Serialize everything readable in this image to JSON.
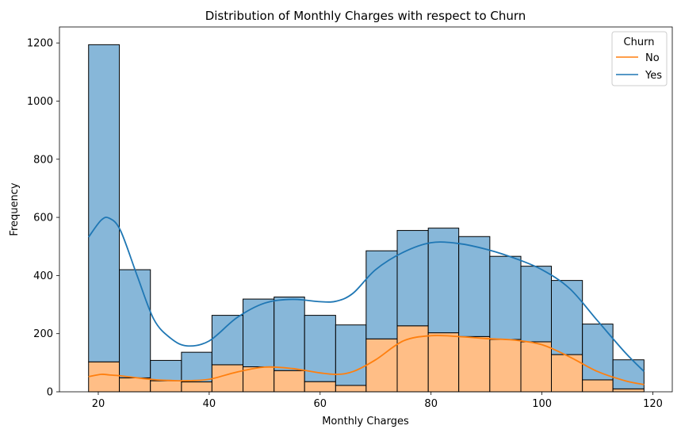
{
  "chart_data": {
    "type": "bar",
    "stacked": true,
    "title": "Distribution of Monthly Charges with respect to Churn",
    "xlabel": "Monthly Charges",
    "ylabel": "Frequency",
    "xlim": [
      13,
      123.5
    ],
    "ylim": [
      0,
      1255
    ],
    "xticks": [
      20,
      40,
      60,
      80,
      100,
      120
    ],
    "yticks": [
      0,
      200,
      400,
      600,
      800,
      1000,
      1200
    ],
    "bin_edges": [
      18.25,
      23.8,
      29.4,
      35.0,
      40.5,
      46.1,
      51.7,
      57.2,
      62.8,
      68.3,
      73.9,
      79.5,
      85.0,
      90.6,
      96.2,
      101.7,
      107.3,
      112.8,
      118.4
    ],
    "series": [
      {
        "name": "No",
        "color": "#ffbe86",
        "line_color": "#ff7f0e",
        "values": [
          103,
          48,
          38,
          34,
          93,
          86,
          73,
          35,
          22,
          182,
          227,
          203,
          190,
          180,
          172,
          128,
          41,
          10
        ]
      },
      {
        "name": "Yes",
        "color": "#87b7d9",
        "line_color": "#1f77b4",
        "values": [
          1091,
          372,
          70,
          102,
          170,
          233,
          253,
          228,
          208,
          303,
          328,
          360,
          344,
          286,
          260,
          255,
          192,
          100
        ]
      }
    ],
    "kde": {
      "x": [
        18.25,
        20.5,
        22.0,
        24.0,
        27.0,
        30.0,
        33.0,
        36.0,
        40.0,
        45.0,
        50.0,
        55.0,
        60.0,
        63.0,
        66.0,
        70.0,
        75.0,
        80.0,
        85.0,
        90.0,
        95.0,
        100.0,
        105.0,
        110.0,
        115.0,
        118.4
      ],
      "No": [
        52,
        60,
        58,
        55,
        48,
        42,
        39,
        38,
        43,
        68,
        85,
        80,
        65,
        60,
        70,
        110,
        175,
        193,
        190,
        183,
        178,
        162,
        120,
        70,
        38,
        25
      ],
      "Yes": [
        532,
        590,
        597,
        555,
        400,
        250,
        185,
        158,
        175,
        255,
        305,
        318,
        310,
        312,
        340,
        420,
        480,
        513,
        510,
        490,
        460,
        420,
        355,
        245,
        135,
        70
      ]
    },
    "legend": {
      "title": "Churn",
      "entries": [
        "No",
        "Yes"
      ],
      "placement": "top-right"
    },
    "grid": false
  }
}
